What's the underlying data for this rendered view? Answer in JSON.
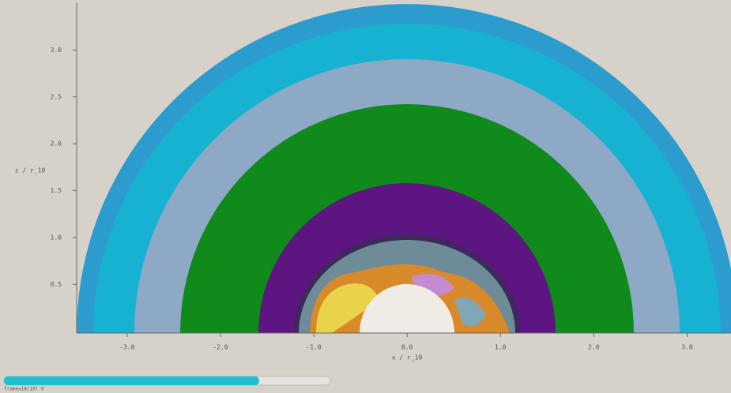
{
  "chart_data": {
    "type": "image-plot",
    "xlabel": "x / r_10",
    "ylabel": "z / r_10",
    "xlim": [
      -3.54,
      3.47
    ],
    "ylim": [
      -0.02,
      3.5
    ],
    "xticks": [
      {
        "value": -3,
        "label": "-3.0"
      },
      {
        "value": -2,
        "label": "-2.0"
      },
      {
        "value": -1,
        "label": "-1.0"
      },
      {
        "value": 0,
        "label": "0.0"
      },
      {
        "value": 1,
        "label": "1.0"
      },
      {
        "value": 2,
        "label": "2.0"
      },
      {
        "value": 3,
        "label": "3.0"
      }
    ],
    "yticks": [
      0.5,
      {
        "value": 1,
        "label": "1.0"
      },
      1.5,
      {
        "value": 2,
        "label": "2.0"
      },
      2.5,
      {
        "value": 3,
        "label": "3.0"
      }
    ],
    "status": "frame=18(10) 0"
  }
}
